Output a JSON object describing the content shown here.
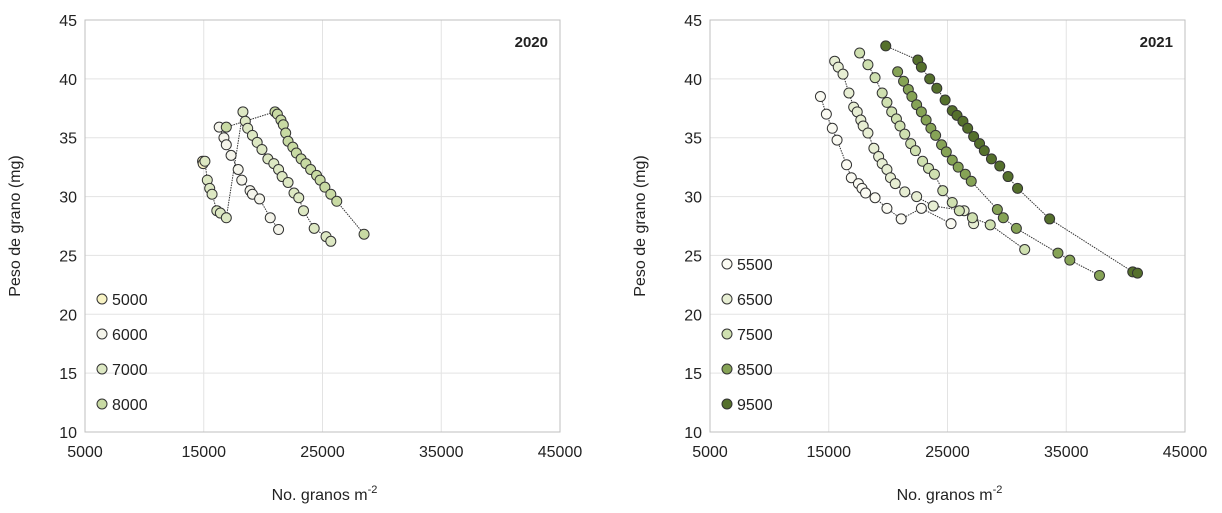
{
  "chart_data": [
    {
      "type": "scatter",
      "year_label": "2020",
      "xlabel": "No. granos m",
      "xlabel_sup": "-2",
      "ylabel": "Peso de grano (mg)",
      "xlim": [
        5000,
        45000
      ],
      "ylim": [
        10,
        45
      ],
      "x_ticks": [
        5000,
        15000,
        25000,
        35000,
        45000
      ],
      "y_ticks": [
        10,
        15,
        20,
        25,
        30,
        35,
        40,
        45
      ],
      "grid": true,
      "legend_position": "bottom-left",
      "series": [
        {
          "name": "5000",
          "color": "#f8f3c4",
          "points": [
            [
              14900,
              33.0
            ],
            [
              14950,
              32.8
            ]
          ]
        },
        {
          "name": "6000",
          "color": "#f4f4ea",
          "points": [
            [
              16300,
              35.9
            ],
            [
              16700,
              35.0
            ],
            [
              16900,
              34.4
            ],
            [
              17300,
              33.5
            ],
            [
              17900,
              32.3
            ],
            [
              18200,
              31.4
            ],
            [
              18900,
              30.5
            ],
            [
              19100,
              30.2
            ],
            [
              19700,
              29.8
            ],
            [
              20600,
              28.2
            ],
            [
              21300,
              27.2
            ]
          ]
        },
        {
          "name": "7000",
          "color": "#dde8c3",
          "points": [
            [
              15100,
              33.0
            ],
            [
              15300,
              31.4
            ],
            [
              15500,
              30.7
            ],
            [
              15700,
              30.2
            ],
            [
              16100,
              28.8
            ],
            [
              16400,
              28.6
            ],
            [
              16900,
              28.2
            ],
            [
              18300,
              37.2
            ],
            [
              18500,
              36.4
            ],
            [
              18700,
              35.8
            ],
            [
              19100,
              35.2
            ],
            [
              19500,
              34.6
            ],
            [
              19900,
              34.0
            ],
            [
              20400,
              33.2
            ],
            [
              20900,
              32.8
            ],
            [
              21300,
              32.3
            ],
            [
              21600,
              31.7
            ],
            [
              22100,
              31.2
            ],
            [
              22600,
              30.3
            ],
            [
              23000,
              29.9
            ],
            [
              23400,
              28.8
            ],
            [
              24300,
              27.3
            ],
            [
              25300,
              26.6
            ],
            [
              25700,
              26.2
            ]
          ]
        },
        {
          "name": "8000",
          "color": "#c8daa3",
          "points": [
            [
              16900,
              35.9
            ],
            [
              21000,
              37.2
            ],
            [
              21200,
              37.0
            ],
            [
              21500,
              36.5
            ],
            [
              21700,
              36.1
            ],
            [
              21900,
              35.4
            ],
            [
              22100,
              34.7
            ],
            [
              22500,
              34.2
            ],
            [
              22800,
              33.7
            ],
            [
              23200,
              33.2
            ],
            [
              23600,
              32.8
            ],
            [
              24000,
              32.3
            ],
            [
              24500,
              31.8
            ],
            [
              24800,
              31.4
            ],
            [
              25200,
              30.8
            ],
            [
              25700,
              30.2
            ],
            [
              26200,
              29.6
            ],
            [
              28500,
              26.8
            ]
          ]
        }
      ]
    },
    {
      "type": "scatter",
      "year_label": "2021",
      "xlabel": "No. granos m",
      "xlabel_sup": "-2",
      "ylabel": "Peso de grano (mg)",
      "xlim": [
        5000,
        45000
      ],
      "ylim": [
        10,
        45
      ],
      "x_ticks": [
        5000,
        15000,
        25000,
        35000,
        45000
      ],
      "y_ticks": [
        10,
        15,
        20,
        25,
        30,
        35,
        40,
        45
      ],
      "grid": true,
      "legend_position": "bottom-left",
      "series": [
        {
          "name": "5500",
          "color": "#fafaf2",
          "points": [
            [
              14300,
              38.5
            ],
            [
              14800,
              37.0
            ],
            [
              15300,
              35.8
            ],
            [
              15700,
              34.8
            ],
            [
              16500,
              32.7
            ],
            [
              16900,
              31.6
            ],
            [
              17500,
              31.1
            ],
            [
              17800,
              30.7
            ],
            [
              18100,
              30.3
            ],
            [
              18900,
              29.9
            ],
            [
              19900,
              29.0
            ],
            [
              21100,
              28.1
            ],
            [
              22800,
              29.0
            ],
            [
              25300,
              27.7
            ]
          ]
        },
        {
          "name": "6500",
          "color": "#e7eed3",
          "points": [
            [
              15500,
              41.5
            ],
            [
              15800,
              41.0
            ],
            [
              16200,
              40.4
            ],
            [
              16700,
              38.8
            ],
            [
              17100,
              37.6
            ],
            [
              17400,
              37.2
            ],
            [
              17700,
              36.5
            ],
            [
              17900,
              36.0
            ],
            [
              18300,
              35.4
            ],
            [
              18800,
              34.1
            ],
            [
              19200,
              33.4
            ],
            [
              19500,
              32.8
            ],
            [
              19900,
              32.3
            ],
            [
              20200,
              31.6
            ],
            [
              20600,
              31.1
            ],
            [
              21400,
              30.4
            ],
            [
              22400,
              30.0
            ],
            [
              23800,
              29.2
            ],
            [
              26400,
              28.8
            ],
            [
              27200,
              27.7
            ]
          ]
        },
        {
          "name": "7500",
          "color": "#cfe0b0",
          "points": [
            [
              17600,
              42.2
            ],
            [
              18300,
              41.2
            ],
            [
              18900,
              40.1
            ],
            [
              19500,
              38.8
            ],
            [
              19900,
              38.0
            ],
            [
              20300,
              37.2
            ],
            [
              20700,
              36.6
            ],
            [
              21000,
              36.0
            ],
            [
              21400,
              35.3
            ],
            [
              21900,
              34.5
            ],
            [
              22300,
              33.9
            ],
            [
              22900,
              33.0
            ],
            [
              23400,
              32.4
            ],
            [
              23900,
              31.9
            ],
            [
              24600,
              30.5
            ],
            [
              25400,
              29.5
            ],
            [
              26000,
              28.8
            ],
            [
              27100,
              28.2
            ],
            [
              28600,
              27.6
            ],
            [
              31500,
              25.5
            ]
          ]
        },
        {
          "name": "8500",
          "color": "#86a356",
          "points": [
            [
              20800,
              40.6
            ],
            [
              21300,
              39.8
            ],
            [
              21700,
              39.1
            ],
            [
              22000,
              38.5
            ],
            [
              22400,
              37.8
            ],
            [
              22800,
              37.2
            ],
            [
              23200,
              36.5
            ],
            [
              23600,
              35.8
            ],
            [
              24000,
              35.2
            ],
            [
              24500,
              34.4
            ],
            [
              24900,
              33.8
            ],
            [
              25400,
              33.1
            ],
            [
              25900,
              32.5
            ],
            [
              26500,
              31.9
            ],
            [
              27000,
              31.3
            ],
            [
              29200,
              28.9
            ],
            [
              29700,
              28.2
            ],
            [
              30800,
              27.3
            ],
            [
              34300,
              25.2
            ],
            [
              35300,
              24.6
            ],
            [
              37800,
              23.3
            ]
          ]
        },
        {
          "name": "9500",
          "color": "#55702c",
          "points": [
            [
              19800,
              42.8
            ],
            [
              22500,
              41.6
            ],
            [
              22800,
              41.0
            ],
            [
              23500,
              40.0
            ],
            [
              24100,
              39.2
            ],
            [
              24800,
              38.2
            ],
            [
              25400,
              37.3
            ],
            [
              25800,
              36.9
            ],
            [
              26300,
              36.4
            ],
            [
              26700,
              35.8
            ],
            [
              27200,
              35.1
            ],
            [
              27700,
              34.5
            ],
            [
              28100,
              33.9
            ],
            [
              28700,
              33.2
            ],
            [
              29400,
              32.6
            ],
            [
              30100,
              31.7
            ],
            [
              30900,
              30.7
            ],
            [
              33600,
              28.1
            ],
            [
              40600,
              23.6
            ],
            [
              41000,
              23.5
            ]
          ]
        }
      ]
    }
  ]
}
